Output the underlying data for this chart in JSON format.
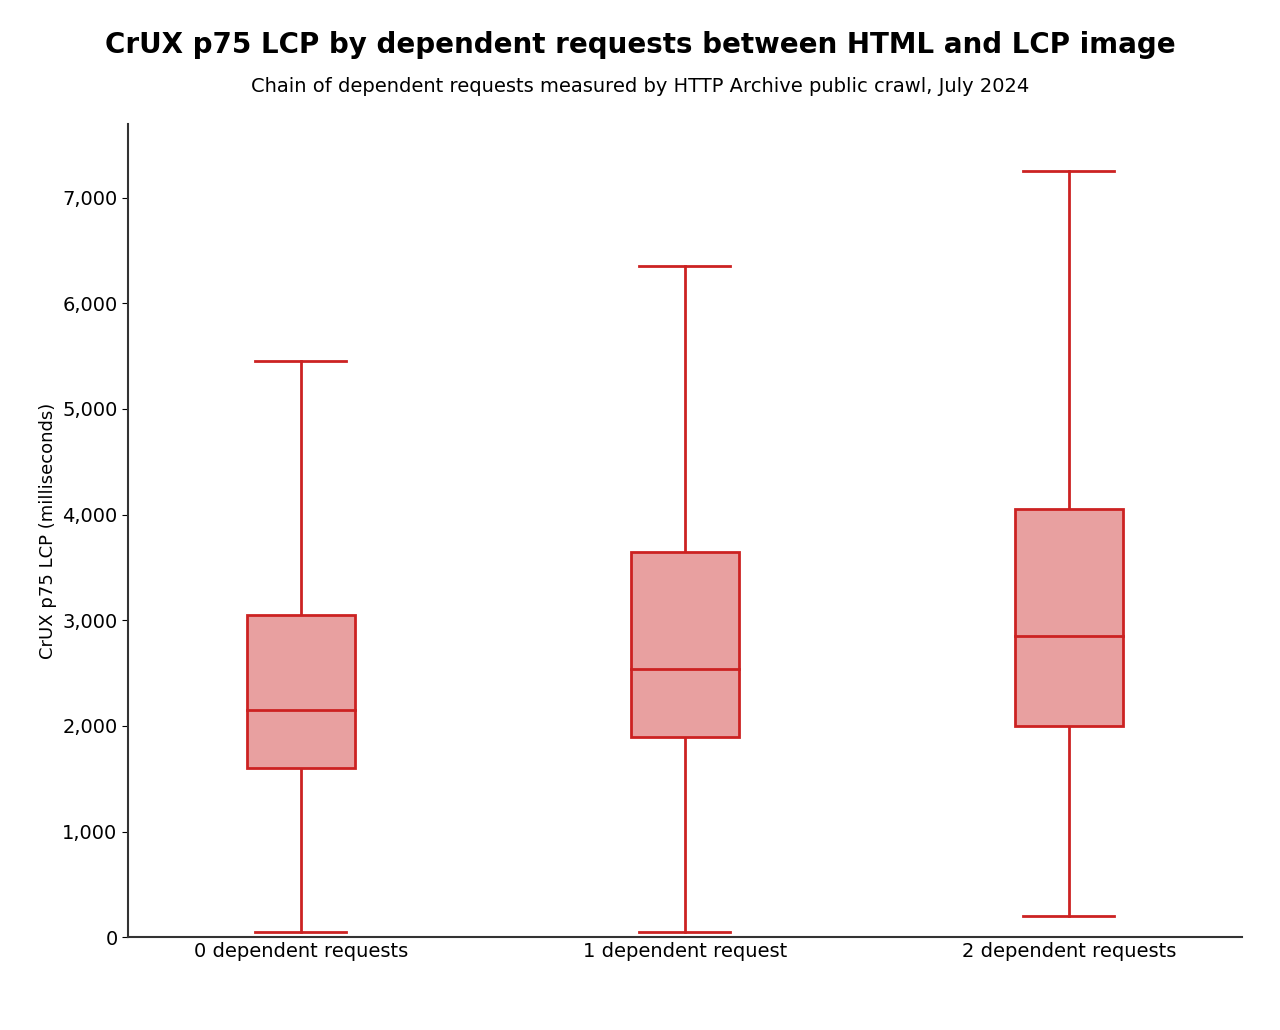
{
  "title": "CrUX p75 LCP by dependent requests between HTML and LCP image",
  "subtitle": "Chain of dependent requests measured by HTTP Archive public crawl, July 2024",
  "ylabel": "CrUX p75 LCP (milliseconds)",
  "categories": [
    "0 dependent requests",
    "1 dependent request",
    "2 dependent requests"
  ],
  "boxes": [
    {
      "whisker_low": 50,
      "q1": 1600,
      "median": 2150,
      "q3": 3050,
      "whisker_high": 5450
    },
    {
      "whisker_low": 50,
      "q1": 1900,
      "median": 2540,
      "q3": 3650,
      "whisker_high": 6350
    },
    {
      "whisker_low": 200,
      "q1": 2000,
      "median": 2850,
      "q3": 4050,
      "whisker_high": 7250
    }
  ],
  "ylim": [
    0,
    7700
  ],
  "yticks": [
    0,
    1000,
    2000,
    3000,
    4000,
    5000,
    6000,
    7000
  ],
  "box_color": "#e8a0a0",
  "median_color": "#cc2222",
  "whisker_color": "#cc2222",
  "box_edge_color": "#cc2222",
  "title_fontsize": 20,
  "subtitle_fontsize": 14,
  "ylabel_fontsize": 13,
  "tick_fontsize": 14,
  "background_color": "#ffffff",
  "box_width": 0.28,
  "positions": [
    1,
    2,
    3
  ],
  "line_width": 2.0
}
